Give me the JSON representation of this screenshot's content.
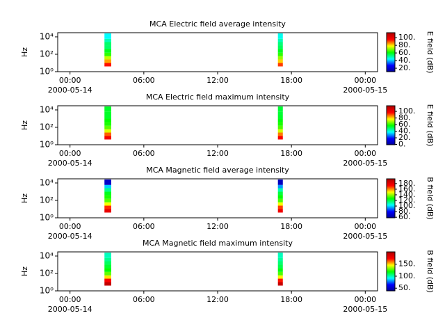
{
  "chart_data": [
    {
      "type": "spectrogram",
      "title": "MCA  Electric field average intensity",
      "ylabel": "Hz",
      "yscale": "log",
      "xlim": [
        -1,
        25
      ],
      "ylim": [
        1,
        30000
      ],
      "xticks": [
        {
          "value": 0,
          "label": "00:00",
          "date": "2000-05-14"
        },
        {
          "value": 6,
          "label": "06:00"
        },
        {
          "value": 12,
          "label": "12:00"
        },
        {
          "value": 18,
          "label": "18:00"
        },
        {
          "value": 24,
          "label": "00:00",
          "date": "2000-05-15"
        }
      ],
      "yticks": [
        {
          "value": 1,
          "label": "10⁰"
        },
        {
          "value": 100,
          "label": "10²"
        },
        {
          "value": 10000,
          "label": "10⁴"
        }
      ],
      "y_edges": [
        4,
        10,
        25,
        60,
        150,
        400,
        1000,
        2500,
        6000,
        25000
      ],
      "columns": [
        {
          "x": [
            2.8,
            3.35
          ],
          "z": [
            95,
            85,
            75,
            65,
            60,
            55,
            55,
            50,
            45
          ]
        },
        {
          "x": [
            16.9,
            17.3
          ],
          "z": [
            92,
            82,
            72,
            65,
            60,
            56,
            54,
            50,
            46
          ]
        }
      ],
      "colorbar": {
        "label": "E field (dB)",
        "clim": [
          11,
          113
        ],
        "ticks": [
          {
            "value": 20,
            "label": "20."
          },
          {
            "value": 40,
            "label": "40."
          },
          {
            "value": 60,
            "label": "60."
          },
          {
            "value": 80,
            "label": "80."
          },
          {
            "value": 100,
            "label": "100."
          }
        ]
      },
      "colormap": [
        "#00008f",
        "#0000ff",
        "#00ffff",
        "#00ff00",
        "#ffff00",
        "#ff0000",
        "#b00000"
      ]
    },
    {
      "type": "spectrogram",
      "title": "MCA  Electric field maximum intensity",
      "ylabel": "Hz",
      "yscale": "log",
      "xlim": [
        -1,
        25
      ],
      "ylim": [
        1,
        30000
      ],
      "xticks": [
        {
          "value": 0,
          "label": "00:00",
          "date": "2000-05-14"
        },
        {
          "value": 6,
          "label": "06:00"
        },
        {
          "value": 12,
          "label": "12:00"
        },
        {
          "value": 18,
          "label": "18:00"
        },
        {
          "value": 24,
          "label": "00:00",
          "date": "2000-05-15"
        }
      ],
      "yticks": [
        {
          "value": 1,
          "label": "10⁰"
        },
        {
          "value": 100,
          "label": "10²"
        },
        {
          "value": 10000,
          "label": "10⁴"
        }
      ],
      "y_edges": [
        4,
        10,
        25,
        60,
        150,
        400,
        1000,
        2500,
        6000,
        25000
      ],
      "columns": [
        {
          "x": [
            2.8,
            3.35
          ],
          "z": [
            100,
            90,
            75,
            65,
            60,
            58,
            55,
            55,
            55
          ]
        },
        {
          "x": [
            16.9,
            17.3
          ],
          "z": [
            98,
            88,
            74,
            64,
            60,
            57,
            55,
            54,
            54
          ]
        }
      ],
      "colorbar": {
        "label": "E field (dB)",
        "clim": [
          -1,
          117
        ],
        "ticks": [
          {
            "value": 0,
            "label": "0."
          },
          {
            "value": 20,
            "label": "20."
          },
          {
            "value": 40,
            "label": "40."
          },
          {
            "value": 60,
            "label": "60."
          },
          {
            "value": 80,
            "label": "80."
          },
          {
            "value": 100,
            "label": "100."
          }
        ]
      },
      "colormap": [
        "#00008f",
        "#0000ff",
        "#00ffff",
        "#00ff00",
        "#ffff00",
        "#ff0000",
        "#b00000"
      ]
    },
    {
      "type": "spectrogram",
      "title": "MCA  Magnetic field average intensity",
      "ylabel": "Hz",
      "yscale": "log",
      "xlim": [
        -1,
        25
      ],
      "ylim": [
        1,
        30000
      ],
      "xticks": [
        {
          "value": 0,
          "label": "00:00",
          "date": "2000-05-14"
        },
        {
          "value": 6,
          "label": "06:00"
        },
        {
          "value": 12,
          "label": "12:00"
        },
        {
          "value": 18,
          "label": "18:00"
        },
        {
          "value": 24,
          "label": "00:00",
          "date": "2000-05-15"
        }
      ],
      "yticks": [
        {
          "value": 1,
          "label": "10⁰"
        },
        {
          "value": 100,
          "label": "10²"
        },
        {
          "value": 10000,
          "label": "10⁴"
        }
      ],
      "y_edges": [
        4,
        10,
        25,
        60,
        150,
        400,
        1000,
        2500,
        6000,
        25000
      ],
      "columns": [
        {
          "x": [
            2.8,
            3.35
          ],
          "z": [
            180,
            170,
            150,
            135,
            130,
            125,
            115,
            100,
            70
          ]
        },
        {
          "x": [
            16.9,
            17.3
          ],
          "z": [
            178,
            168,
            150,
            134,
            128,
            122,
            112,
            95,
            68
          ]
        }
      ],
      "colorbar": {
        "label": "B field (dB)",
        "clim": [
          58,
          197
        ],
        "ticks": [
          {
            "value": 60,
            "label": "60."
          },
          {
            "value": 80,
            "label": "80."
          },
          {
            "value": 100,
            "label": "100."
          },
          {
            "value": 120,
            "label": "120."
          },
          {
            "value": 140,
            "label": "140."
          },
          {
            "value": 160,
            "label": "160."
          },
          {
            "value": 180,
            "label": "180."
          }
        ]
      },
      "colormap": [
        "#00008f",
        "#0000ff",
        "#00ffff",
        "#00ff00",
        "#ffff00",
        "#ff0000",
        "#b00000"
      ]
    },
    {
      "type": "spectrogram",
      "title": "MCA  Magnetic field maximum intensity",
      "ylabel": "Hz",
      "yscale": "log",
      "xlim": [
        -1,
        25
      ],
      "ylim": [
        1,
        30000
      ],
      "xticks": [
        {
          "value": 0,
          "label": "00:00",
          "date": "2000-05-14"
        },
        {
          "value": 6,
          "label": "06:00"
        },
        {
          "value": 12,
          "label": "12:00"
        },
        {
          "value": 18,
          "label": "18:00"
        },
        {
          "value": 24,
          "label": "00:00",
          "date": "2000-05-15"
        }
      ],
      "yticks": [
        {
          "value": 1,
          "label": "10⁰"
        },
        {
          "value": 100,
          "label": "10²"
        },
        {
          "value": 10000,
          "label": "10⁴"
        }
      ],
      "y_edges": [
        4,
        10,
        25,
        60,
        150,
        400,
        1000,
        2500,
        6000,
        25000
      ],
      "columns": [
        {
          "x": [
            2.8,
            3.35
          ],
          "z": [
            195,
            175,
            150,
            130,
            120,
            115,
            110,
            105,
            100
          ]
        },
        {
          "x": [
            16.9,
            17.3
          ],
          "z": [
            193,
            172,
            148,
            128,
            118,
            112,
            108,
            104,
            100
          ]
        }
      ],
      "colorbar": {
        "label": "B field (dB)",
        "clim": [
          39,
          201
        ],
        "ticks": [
          {
            "value": 50,
            "label": "50."
          },
          {
            "value": 100,
            "label": "100."
          },
          {
            "value": 150,
            "label": "150."
          }
        ]
      },
      "colormap": [
        "#00008f",
        "#0000ff",
        "#00ffff",
        "#00ff00",
        "#ffff00",
        "#ff0000",
        "#b00000"
      ]
    }
  ]
}
